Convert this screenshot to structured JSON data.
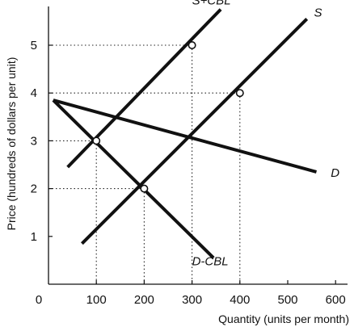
{
  "chart_data": {
    "type": "line",
    "title": "",
    "xlabel": "Quantity (units per month)",
    "ylabel": "Price (hundreds of dollars per unit)",
    "xlim": [
      0,
      700
    ],
    "ylim": [
      0,
      6
    ],
    "x_ticks": [
      {
        "value": 0,
        "label": "0"
      },
      {
        "value": 100,
        "label": "100"
      },
      {
        "value": 200,
        "label": "200"
      },
      {
        "value": 300,
        "label": "300"
      },
      {
        "value": 400,
        "label": "400"
      },
      {
        "value": 500,
        "label": "500"
      },
      {
        "value": 600,
        "label": "600"
      }
    ],
    "y_ticks": [
      {
        "value": 1,
        "label": "1"
      },
      {
        "value": 2,
        "label": "2"
      },
      {
        "value": 3,
        "label": "3"
      },
      {
        "value": 4,
        "label": "4"
      },
      {
        "value": 5,
        "label": "5"
      }
    ],
    "grid": false,
    "series": [
      {
        "name": "S",
        "points": [
          [
            70,
            0.85
          ],
          [
            540,
            5.55
          ]
        ]
      },
      {
        "name": "S+CBL",
        "points": [
          [
            40,
            2.45
          ],
          [
            360,
            5.75
          ]
        ]
      },
      {
        "name": "D",
        "points": [
          [
            10,
            3.85
          ],
          [
            560,
            2.35
          ]
        ]
      },
      {
        "name": "D-CBL",
        "points": [
          [
            10,
            3.85
          ],
          [
            345,
            0.55
          ]
        ]
      }
    ],
    "curve_labels": [
      {
        "series": "S",
        "text": "S",
        "x": 555,
        "y": 5.6
      },
      {
        "series": "S+CBL",
        "text": "S+CBL",
        "x": 300,
        "y": 5.85
      },
      {
        "series": "D",
        "text": "D",
        "x": 590,
        "y": 2.25
      },
      {
        "series": "D-CBL",
        "text": "D-CBL",
        "x": 300,
        "y": 0.4
      }
    ],
    "equilibria": [
      {
        "x": 100,
        "y": 3
      },
      {
        "x": 200,
        "y": 2
      },
      {
        "x": 300,
        "y": 5
      },
      {
        "x": 400,
        "y": 4
      }
    ]
  }
}
